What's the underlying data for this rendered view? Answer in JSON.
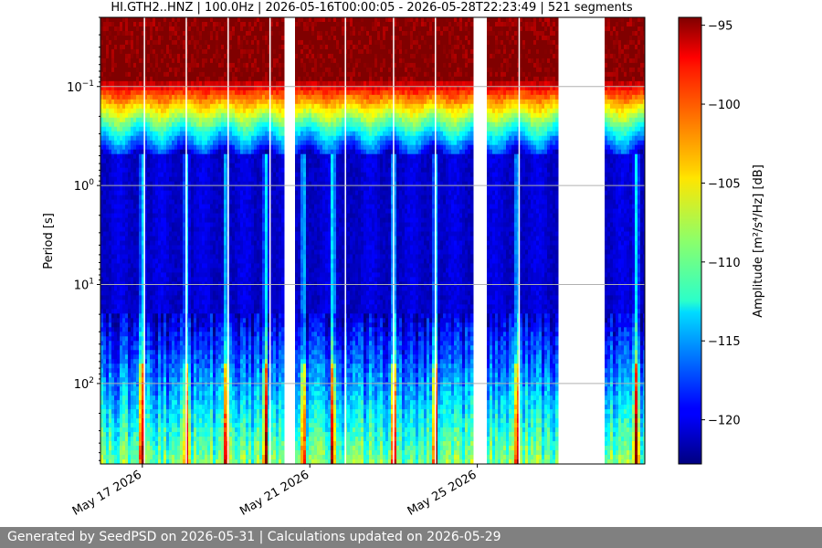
{
  "chart_data": {
    "type": "heatmap",
    "title": "HI.GTH2..HNZ | 100.0Hz | 2026-05-16T00:00:05 - 2026-05-28T22:23:49 | 521 segments",
    "xlabel": "",
    "ylabel": "Period [s]",
    "colorbar_label": "Amplitude [m²/s⁴/Hz] [dB]",
    "x_range": [
      "2026-05-16",
      "2026-05-29"
    ],
    "y_range_period_s": [
      0.02,
      650
    ],
    "y_scale": "log",
    "y_inverted": true,
    "x_ticks": [
      {
        "date": "2026-05-17",
        "label": "May 17 2026"
      },
      {
        "date": "2026-05-21",
        "label": "May 21 2026"
      },
      {
        "date": "2026-05-25",
        "label": "May 25 2026"
      }
    ],
    "y_ticks": [
      {
        "value": 0.1,
        "base": "10",
        "exp": "−1"
      },
      {
        "value": 1,
        "base": "10",
        "exp": "0"
      },
      {
        "value": 10,
        "base": "10",
        "exp": "1"
      },
      {
        "value": 100,
        "base": "10",
        "exp": "2"
      }
    ],
    "colorbar_range": [
      -122.8,
      -94.5
    ],
    "colorbar_ticks": [
      {
        "value": -95,
        "label": "−95"
      },
      {
        "value": -100,
        "label": "−100"
      },
      {
        "value": -105,
        "label": "−105"
      },
      {
        "value": -110,
        "label": "−110"
      },
      {
        "value": -115,
        "label": "−115"
      },
      {
        "value": -120,
        "label": "−120"
      }
    ],
    "colormap": "jet",
    "grid": true,
    "data_gaps": [
      {
        "start": "2026-05-20T08:30",
        "end": "2026-05-20T15:00"
      },
      {
        "start": "2026-05-24T21:00",
        "end": "2026-05-25T05:00"
      },
      {
        "start": "2026-05-26T22:00",
        "end": "2026-05-28T01:00"
      }
    ]
  },
  "footer": {
    "text": "Generated by SeedPSD on 2026-05-31 | Calculations updated on 2026-05-29"
  }
}
